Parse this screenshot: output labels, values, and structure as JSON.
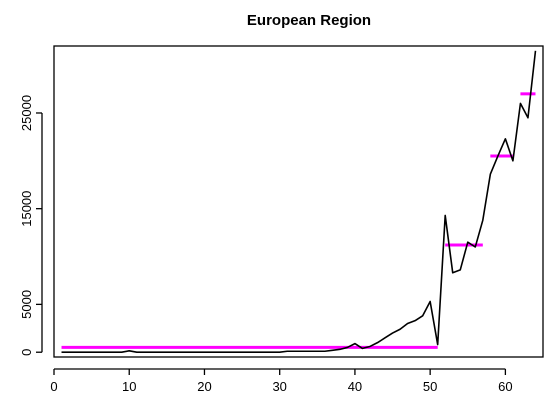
{
  "chart_data": {
    "type": "line",
    "title": "European Region",
    "xlabel": "",
    "ylabel": "",
    "xlim": [
      0,
      65
    ],
    "ylim": [
      -500,
      32000
    ],
    "x_ticks": [
      0,
      10,
      20,
      30,
      40,
      50,
      60
    ],
    "y_ticks": [
      0,
      5000,
      15000,
      25000
    ],
    "grid": false,
    "legend": "none",
    "series": [
      {
        "color": "#000000",
        "x": [
          1,
          2,
          3,
          4,
          5,
          6,
          7,
          8,
          9,
          10,
          11,
          12,
          13,
          14,
          15,
          16,
          17,
          18,
          19,
          20,
          21,
          22,
          23,
          24,
          25,
          26,
          27,
          28,
          29,
          30,
          31,
          32,
          33,
          34,
          35,
          36,
          37,
          38,
          39,
          40,
          41,
          42,
          43,
          44,
          45,
          46,
          47,
          48,
          49,
          50,
          51,
          52,
          53,
          54,
          55,
          56,
          57,
          58,
          59,
          60,
          61,
          62,
          63,
          64
        ],
        "values": [
          0,
          0,
          0,
          0,
          0,
          0,
          0,
          0,
          0,
          150,
          0,
          0,
          0,
          0,
          0,
          0,
          0,
          0,
          0,
          0,
          0,
          0,
          0,
          0,
          0,
          0,
          0,
          0,
          0,
          0,
          100,
          100,
          100,
          100,
          100,
          100,
          200,
          300,
          500,
          900,
          400,
          600,
          1000,
          1500,
          2000,
          2400,
          3000,
          3300,
          3800,
          5300,
          800,
          14300,
          8300,
          8600,
          11500,
          11000,
          13800,
          18600,
          20500,
          22300,
          20000,
          26000,
          24500,
          31500
        ]
      }
    ],
    "segments": [
      {
        "color": "#ff00ff",
        "x": [
          1,
          51
        ],
        "value": 500
      },
      {
        "color": "#ff00ff",
        "x": [
          52,
          57
        ],
        "value": 11200
      },
      {
        "color": "#ff00ff",
        "x": [
          58,
          61
        ],
        "value": 20500
      },
      {
        "color": "#ff00ff",
        "x": [
          62,
          64
        ],
        "value": 27000
      }
    ]
  }
}
